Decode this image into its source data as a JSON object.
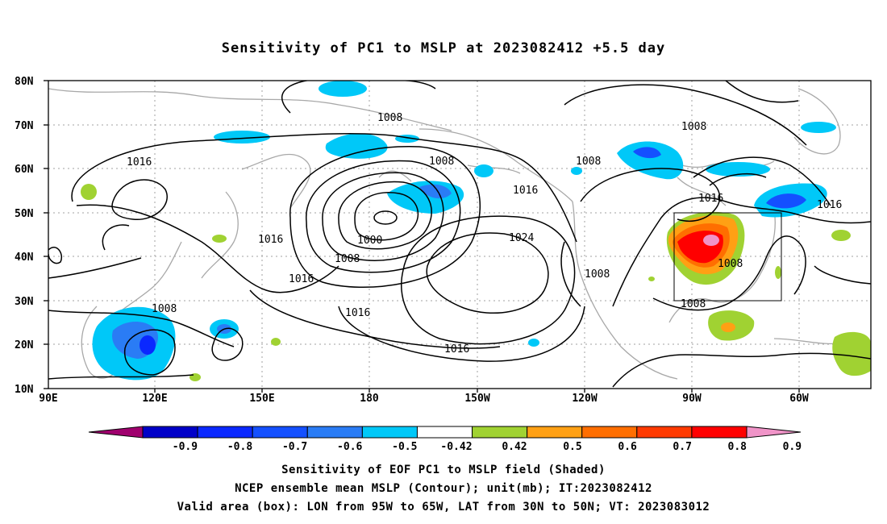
{
  "title": "Sensitivity of PC1 to MSLP at 2023082412 +5.5 day",
  "lat_labels": [
    "80N",
    "70N",
    "60N",
    "50N",
    "40N",
    "30N",
    "20N",
    "10N"
  ],
  "lon_labels": [
    "90E",
    "120E",
    "150E",
    "180",
    "150W",
    "120W",
    "90W",
    "60W"
  ],
  "contour_labels": [
    {
      "text": "1008"
    },
    {
      "text": "1016"
    },
    {
      "text": "1008"
    },
    {
      "text": "1016"
    },
    {
      "text": "1000"
    },
    {
      "text": "1008"
    },
    {
      "text": "1016"
    },
    {
      "text": "1016"
    },
    {
      "text": "1024"
    },
    {
      "text": "1008"
    },
    {
      "text": "1008"
    },
    {
      "text": "1016"
    },
    {
      "text": "1016"
    },
    {
      "text": "1016"
    },
    {
      "text": "1008"
    },
    {
      "text": "1008"
    },
    {
      "text": "1016"
    },
    {
      "text": "1008"
    }
  ],
  "valid_box": {
    "lon_from": "95W",
    "lon_to": "65W",
    "lat_from": "30N",
    "lat_to": "50N"
  },
  "colorbar": {
    "labels": [
      "-0.9",
      "-0.8",
      "-0.7",
      "-0.6",
      "-0.5",
      "-0.42",
      "0.42",
      "0.5",
      "0.6",
      "0.7",
      "0.8",
      "0.9"
    ],
    "colors": [
      "#a0006e",
      "#0000c8",
      "#0a28ff",
      "#1450ff",
      "#2a7cf5",
      "#00c8f8",
      "#ffffff",
      "#a0d232",
      "#ffa014",
      "#ff6e00",
      "#ff3a00",
      "#ff0000",
      "#f094c8"
    ]
  },
  "captions": [
    "Sensitivity of EOF PC1 to MSLP field (Shaded)",
    "NCEP ensemble mean MSLP (Contour); unit(mb); IT:2023082412",
    "Valid area (box): LON from 95W to 65W, LAT from 30N to 50N; VT: 2023083012"
  ]
}
